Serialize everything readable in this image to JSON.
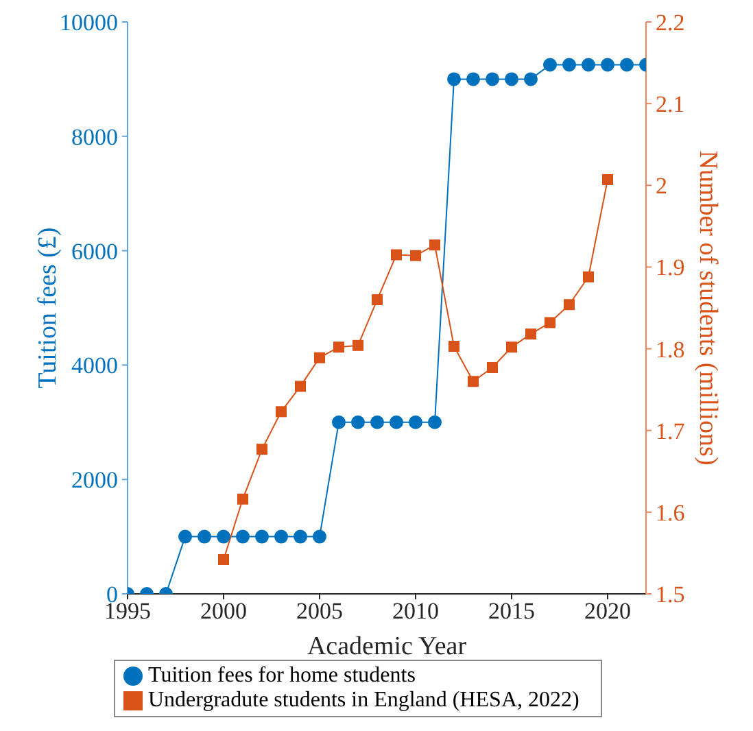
{
  "chart_data": {
    "type": "line",
    "xlabel": "Academic Year",
    "ylabel": "Tuition fees (£)",
    "y2label": "Number of students (millions)",
    "series": [
      {
        "name": "Tuition fees for home students",
        "color": "#0072bd",
        "marker": "circle",
        "x": [
          1995,
          1996,
          1997,
          1998,
          1999,
          2000,
          2001,
          2002,
          2003,
          2004,
          2005,
          2006,
          2007,
          2008,
          2009,
          2010,
          2011,
          2012,
          2013,
          2014,
          2015,
          2016,
          2017,
          2018,
          2019,
          2020,
          2021,
          2022
        ],
        "values": [
          0,
          0,
          0,
          1000,
          1000,
          1000,
          1000,
          1000,
          1000,
          1000,
          1000,
          3000,
          3000,
          3000,
          3000,
          3000,
          3000,
          9000,
          9000,
          9000,
          9000,
          9000,
          9250,
          9250,
          9250,
          9250,
          9250,
          9250
        ]
      },
      {
        "name": "Undergradute students in England (HESA, 2022)",
        "color": "#d95319",
        "marker": "square",
        "axis": "y2",
        "x": [
          2000,
          2001,
          2002,
          2003,
          2004,
          2005,
          2006,
          2007,
          2008,
          2009,
          2010,
          2011,
          2012,
          2013,
          2014,
          2015,
          2016,
          2017,
          2018,
          2019,
          2020
        ],
        "values": [
          1.542,
          1.616,
          1.677,
          1.723,
          1.754,
          1.789,
          1.802,
          1.804,
          1.86,
          1.915,
          1.914,
          1.927,
          1.803,
          1.76,
          1.777,
          1.802,
          1.818,
          1.832,
          1.854,
          1.888,
          2.007
        ]
      }
    ],
    "xlim": [
      1995,
      2022
    ],
    "xticks": [
      1995,
      2000,
      2005,
      2010,
      2015,
      2020
    ],
    "ylim": [
      0,
      10000
    ],
    "yticks": [
      0,
      2000,
      4000,
      6000,
      8000,
      10000
    ],
    "y2lim": [
      1.5,
      2.2
    ],
    "y2ticks": [
      1.5,
      1.6,
      1.7,
      1.8,
      1.9,
      2,
      2.1,
      2.2
    ],
    "grid": false,
    "legend": "bottom"
  }
}
